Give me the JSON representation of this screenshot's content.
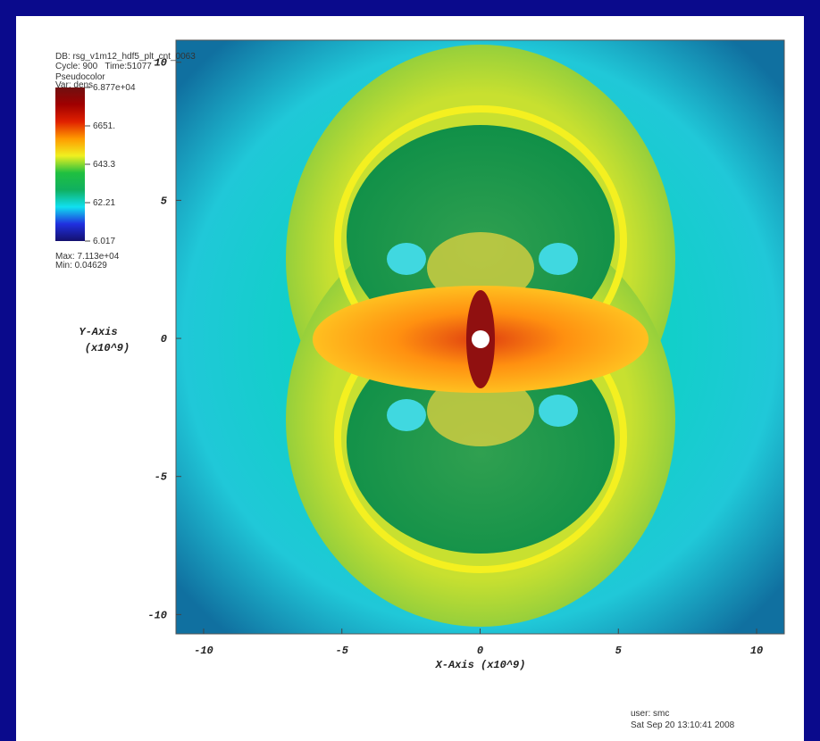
{
  "chart_data": {
    "type": "pseudocolor",
    "db": "DB: rsg_v1m12_hdf5_plt_cnt_0063",
    "cycle_time": "Cycle: 900   Time:51077",
    "plot_name": "Pseudocolor",
    "variable": "Var: dens",
    "max": "Max: 7.113e+04",
    "min": "Min: 0.04629",
    "ylabel": "Y-Axis",
    "ylabel_unit": "(x10^9)",
    "xlabel": "X-Axis (x10^9)",
    "user": "user: smc",
    "date": "Sat Sep 20 13:10:41 2008",
    "xlim": [
      -11,
      11
    ],
    "ylim": [
      -10.7,
      10.8
    ],
    "xticks": [
      -10,
      -5,
      0,
      5,
      10
    ],
    "yticks": [
      -10,
      -5,
      0,
      5,
      10
    ],
    "colorbar": {
      "log_scale": true,
      "lim": [
        6.017,
        68770
      ],
      "ticks": [
        {
          "value": 68770,
          "label": "6.877e+04"
        },
        {
          "value": 6651,
          "label": "6651."
        },
        643.3,
        62.21,
        6.017
      ],
      "colors": [
        "#14106e",
        "#2030e0",
        "#10e0f0",
        "#10b060",
        "#20c040",
        "#f0f020",
        "#ff9a00",
        "#e02000",
        "#a00000",
        "#701010"
      ]
    }
  }
}
